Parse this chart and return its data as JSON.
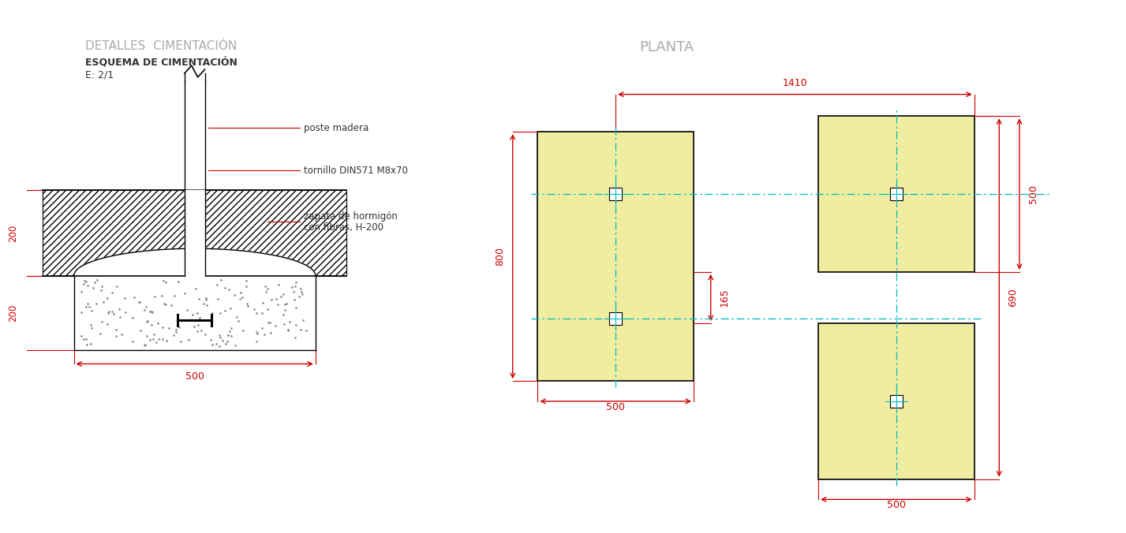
{
  "bg_color": "#ffffff",
  "title_main": "DETALLES  CIMENTACIÓN",
  "title_sub": "ESQUEMA DE CIMENTACIÓN",
  "title_scale": "E: 2/1",
  "title_planta": "PLANTA",
  "label_poste": "poste madera",
  "label_tornillo": "tornillo DIN571 M8x70",
  "label_zapata_1": "zapata de hormigón",
  "label_zapata_2": "con fibras, H-200",
  "dim_500_bottom": "500",
  "dim_200_top": "200",
  "dim_200_bot": "200",
  "dim_1410": "1410",
  "dim_800": "800",
  "dim_165": "165",
  "dim_500_left": "500",
  "dim_690": "690",
  "dim_500_right": "500",
  "dim_500_br": "500",
  "red": "#cc0000",
  "black": "#000000",
  "cyan_dash": "#00bbbb",
  "title_color": "#aaaaaa",
  "text_color": "#333333",
  "yellow_fill": "#f0eda0"
}
